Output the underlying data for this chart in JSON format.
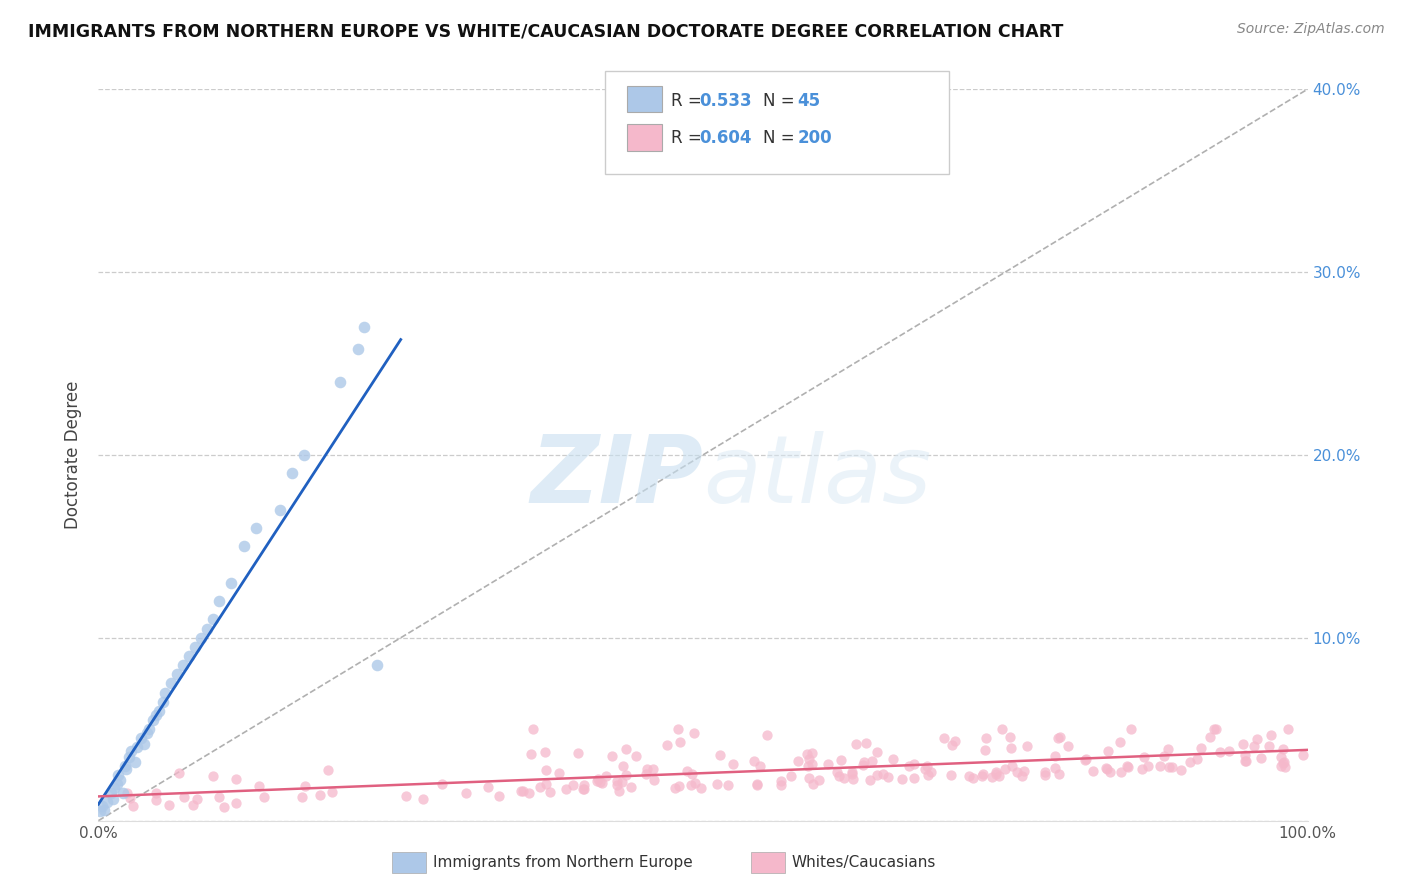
{
  "title": "IMMIGRANTS FROM NORTHERN EUROPE VS WHITE/CAUCASIAN DOCTORATE DEGREE CORRELATION CHART",
  "source": "Source: ZipAtlas.com",
  "ylabel": "Doctorate Degree",
  "xlabel_blue": "Immigrants from Northern Europe",
  "xlabel_pink": "Whites/Caucasians",
  "xlim": [
    0,
    1.0
  ],
  "ylim": [
    0,
    0.4
  ],
  "xticks": [
    0,
    0.2,
    0.4,
    0.6,
    0.8,
    1.0
  ],
  "xtick_labels": [
    "0.0%",
    "",
    "",
    "",
    "",
    "100.0%"
  ],
  "yticks": [
    0,
    0.1,
    0.2,
    0.3,
    0.4
  ],
  "ytick_labels_left": [
    "",
    "",
    "",
    "",
    ""
  ],
  "ytick_labels_right": [
    "",
    "10.0%",
    "20.0%",
    "30.0%",
    "40.0%"
  ],
  "blue_color": "#adc8e8",
  "pink_color": "#f5b8cb",
  "blue_line_color": "#2060c0",
  "pink_line_color": "#e06080",
  "R_blue": 0.533,
  "N_blue": 45,
  "R_pink": 0.604,
  "N_pink": 200,
  "watermark_zip": "ZIP",
  "watermark_atlas": "atlas",
  "figsize": [
    14.06,
    8.92
  ],
  "dpi": 100,
  "blue_points_x": [
    0.001,
    0.003,
    0.005,
    0.007,
    0.01,
    0.012,
    0.013,
    0.015,
    0.016,
    0.018,
    0.02,
    0.022,
    0.023,
    0.025,
    0.027,
    0.03,
    0.032,
    0.035,
    0.038,
    0.04,
    0.042,
    0.045,
    0.048,
    0.05,
    0.053,
    0.055,
    0.06,
    0.065,
    0.07,
    0.075,
    0.08,
    0.085,
    0.09,
    0.095,
    0.1,
    0.11,
    0.12,
    0.13,
    0.15,
    0.16,
    0.17,
    0.2,
    0.215,
    0.22,
    0.23
  ],
  "blue_points_y": [
    0.005,
    0.008,
    0.006,
    0.01,
    0.015,
    0.012,
    0.018,
    0.02,
    0.025,
    0.022,
    0.015,
    0.03,
    0.028,
    0.035,
    0.038,
    0.032,
    0.04,
    0.045,
    0.042,
    0.048,
    0.05,
    0.055,
    0.058,
    0.06,
    0.065,
    0.07,
    0.075,
    0.08,
    0.085,
    0.09,
    0.095,
    0.1,
    0.105,
    0.11,
    0.12,
    0.13,
    0.15,
    0.16,
    0.17,
    0.19,
    0.2,
    0.24,
    0.258,
    0.27,
    0.085
  ]
}
